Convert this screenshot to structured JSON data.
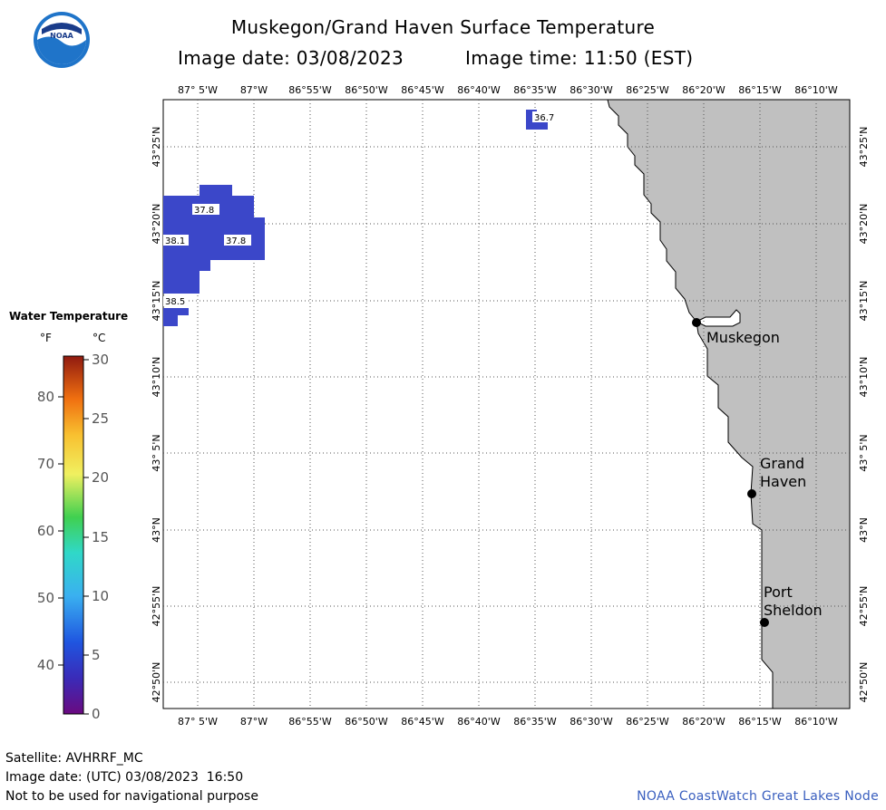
{
  "header": {
    "logo_text": "NOAA",
    "title": "Muskegon/Grand Haven Surface Temperature",
    "image_date": "Image date: 03/08/2023",
    "image_time": "Image time: 11:50 (EST)"
  },
  "map": {
    "top_lon_labels": [
      "87° 5'W",
      "87°W",
      "86°55'W",
      "86°50'W",
      "86°45'W",
      "86°40'W",
      "86°35'W",
      "86°30'W",
      "86°25'W",
      "86°20'W",
      "86°15'W",
      "86°10'W"
    ],
    "bottom_lon_labels": [
      "87° 5'W",
      "87°W",
      "86°55'W",
      "86°50'W",
      "86°45'W",
      "86°40'W",
      "86°35'W",
      "86°30'W",
      "86°25'W",
      "86°20'W",
      "86°15'W",
      "86°10'W"
    ],
    "lat_labels": [
      "43°25'N",
      "43°20'N",
      "43°15'N",
      "43°10'N",
      "43° 5'N",
      "43°N",
      "42°55'N",
      "42°50'N"
    ],
    "temperature_labels": [
      "36.7",
      "37.8",
      "38.1",
      "37.8",
      "38.5"
    ],
    "cities": [
      {
        "name_lines": [
          "Muskegon"
        ]
      },
      {
        "name_lines": [
          "Grand",
          "Haven"
        ]
      },
      {
        "name_lines": [
          "Port",
          "Sheldon"
        ]
      }
    ],
    "water_color": "#3b47c9",
    "land_color": "#c0c0c0"
  },
  "colorbar": {
    "title": "Water Temperature",
    "unit_f": "°F",
    "unit_c": "°C",
    "f_ticks": [
      "80",
      "70",
      "60",
      "50",
      "40"
    ],
    "c_ticks": [
      "30",
      "25",
      "20",
      "15",
      "10",
      "5",
      "0"
    ]
  },
  "footer": {
    "satellite": "Satellite: AVHRRF_MC",
    "utc_date": "Image date: (UTC) 03/08/2023  16:50",
    "disclaimer": "Not to be used for navigational purpose",
    "credit": "NOAA CoastWatch Great Lakes Node"
  }
}
